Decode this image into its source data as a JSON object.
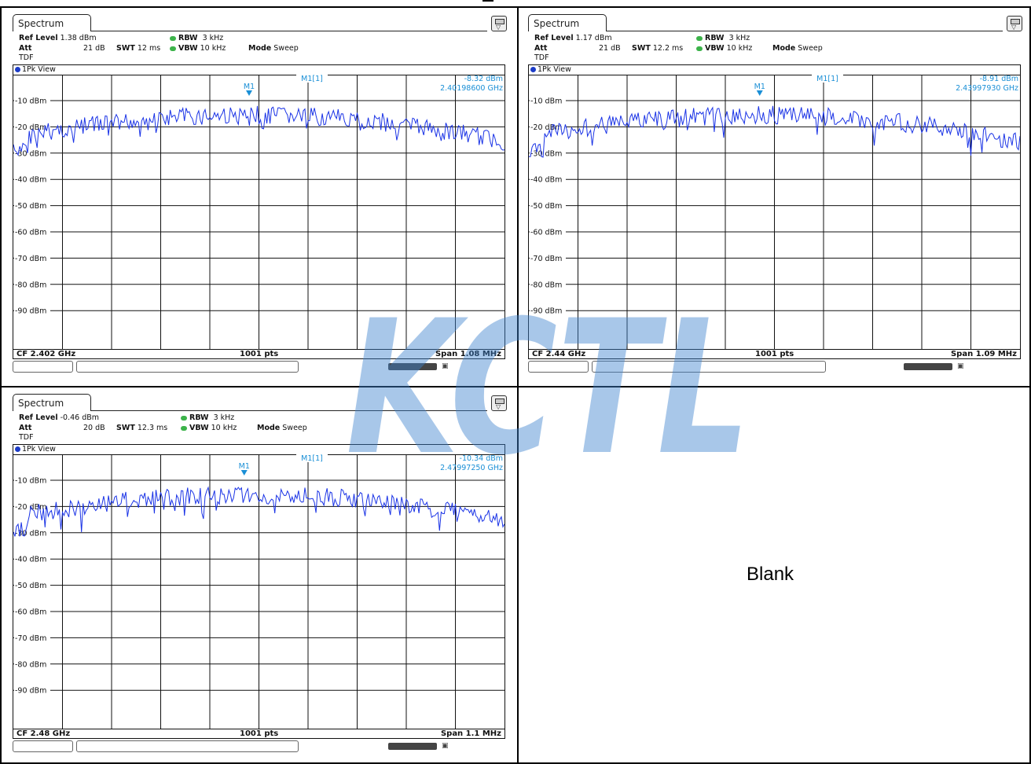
{
  "panels": [
    {
      "tab": "Spectrum",
      "ref_level_label": "Ref Level",
      "ref_level": "1.38 dBm",
      "att_label": "Att",
      "att": "21 dB",
      "swt_label": "SWT",
      "swt": "12 ms",
      "rbw_label": "RBW",
      "rbw": "3 kHz",
      "vbw_label": "VBW",
      "vbw": "10 kHz",
      "mode_label": "Mode",
      "mode": "Sweep",
      "tdf": "TDF",
      "view": "1Pk View",
      "marker_label": "M1[1]",
      "marker_level": "-8.32 dBm",
      "marker_freq": "2.40198600 GHz",
      "marker_name": "M1",
      "marker_x_frac": 0.48,
      "cf": "CF 2.402 GHz",
      "pts": "1001 pts",
      "span": "Span 1.08 MHz",
      "trace_seed": 7
    },
    {
      "tab": "Spectrum",
      "ref_level_label": "Ref Level",
      "ref_level": "1.17 dBm",
      "att_label": "Att",
      "att": "21 dB",
      "swt_label": "SWT",
      "swt": "12.2 ms",
      "rbw_label": "RBW",
      "rbw": "3 kHz",
      "vbw_label": "VBW",
      "vbw": "10 kHz",
      "mode_label": "Mode",
      "mode": "Sweep",
      "tdf": "TDF",
      "view": "1Pk View",
      "marker_label": "M1[1]",
      "marker_level": "-8.91 dBm",
      "marker_freq": "2.43997930 GHz",
      "marker_name": "M1",
      "marker_x_frac": 0.47,
      "cf": "CF 2.44 GHz",
      "pts": "1001 pts",
      "span": "Span 1.09 MHz",
      "trace_seed": 13
    },
    {
      "tab": "Spectrum",
      "ref_level_label": "Ref Level",
      "ref_level": "-0.46 dBm",
      "att_label": "Att",
      "att": "20 dB",
      "swt_label": "SWT",
      "swt": "12.3 ms",
      "rbw_label": "RBW",
      "rbw": "3 kHz",
      "vbw_label": "VBW",
      "vbw": "10 kHz",
      "mode_label": "Mode",
      "mode": "Sweep",
      "tdf": "TDF",
      "view": "1Pk View",
      "marker_label": "M1[1]",
      "marker_level": "-10.34 dBm",
      "marker_freq": "2.47997250 GHz",
      "marker_name": "M1",
      "marker_x_frac": 0.47,
      "cf": "CF 2.48 GHz",
      "pts": "1001 pts",
      "span": "Span 1.1 MHz",
      "trace_seed": 29
    }
  ],
  "y_ticks": [
    "-10 dBm",
    "-20 dBm",
    "-30 dBm",
    "-40 dBm",
    "-50 dBm",
    "-60 dBm",
    "-70 dBm",
    "-80 dBm",
    "-90 dBm"
  ],
  "blank_label": "Blank",
  "watermark_text": "KCTL",
  "colors": {
    "trace": "#1a33e6",
    "marker": "#1a8fd6",
    "grid": "#111111",
    "watermark": "#3e82cf"
  }
}
